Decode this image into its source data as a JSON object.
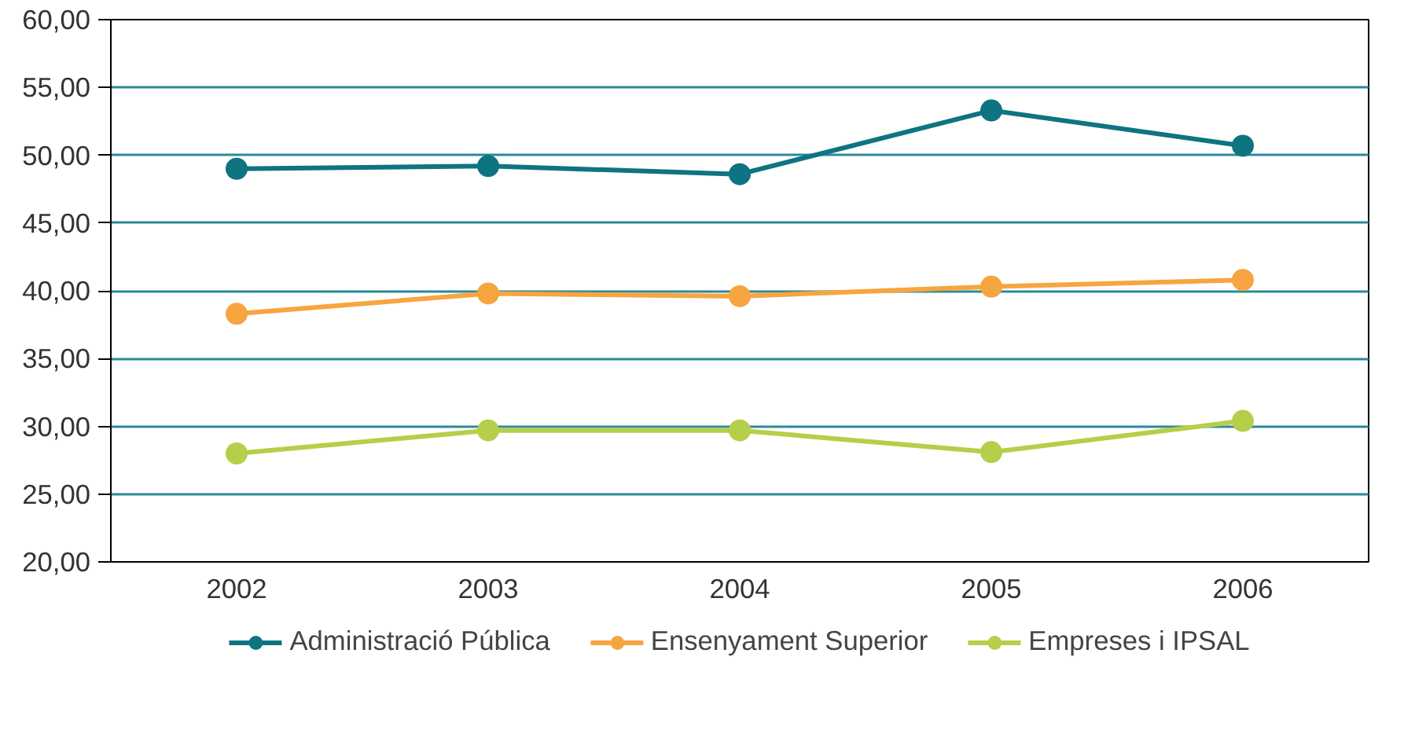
{
  "chart_data": {
    "type": "line",
    "categories": [
      "2002",
      "2003",
      "2004",
      "2005",
      "2006"
    ],
    "series": [
      {
        "name": "Administració Pública",
        "color": "#0e7482",
        "values": [
          49.0,
          49.2,
          48.6,
          53.3,
          50.7
        ]
      },
      {
        "name": "Ensenyament Superior",
        "color": "#f7a540",
        "values": [
          38.3,
          39.8,
          39.6,
          40.3,
          40.8
        ]
      },
      {
        "name": "Empreses i IPSAL",
        "color": "#b5cf4a",
        "values": [
          28.0,
          29.7,
          29.7,
          28.1,
          30.4
        ]
      }
    ],
    "ylim": [
      20,
      60
    ],
    "yticks": [
      {
        "value": 20,
        "label": "20,00"
      },
      {
        "value": 25,
        "label": "25,00"
      },
      {
        "value": 30,
        "label": "30,00"
      },
      {
        "value": 35,
        "label": "35,00"
      },
      {
        "value": 40,
        "label": "40,00"
      },
      {
        "value": 45,
        "label": "45,00"
      },
      {
        "value": 50,
        "label": "50,00"
      },
      {
        "value": 55,
        "label": "55,00"
      },
      {
        "value": 60,
        "label": "60,00"
      }
    ],
    "grid": "y",
    "legend": "bottom",
    "marker": "circle",
    "line_style": "solid"
  }
}
